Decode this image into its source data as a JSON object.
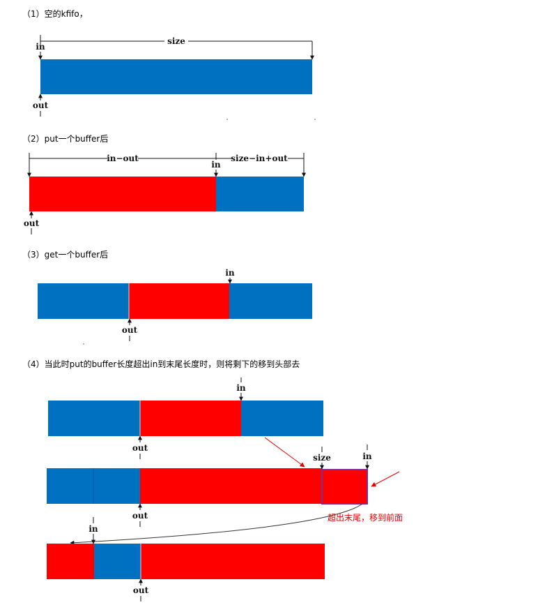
{
  "colors": {
    "blue": "#0070c0",
    "red": "#ff0000",
    "ink": "#111111",
    "outline": "#7030a0"
  },
  "captions": {
    "c1": "（1）空的kfifo，",
    "c2": "（2）put一个buffer后",
    "c3": "（3）get一个buffer后",
    "c4": "（4）当此时put的buffer长度超出in到末尾长度时，则将剩下的移到头部去"
  },
  "labels": {
    "in": "in",
    "out": "out",
    "size": "size",
    "in_out": "in−out",
    "size_in_out": "size−in+out"
  },
  "note": "超出末尾，移到前面"
}
